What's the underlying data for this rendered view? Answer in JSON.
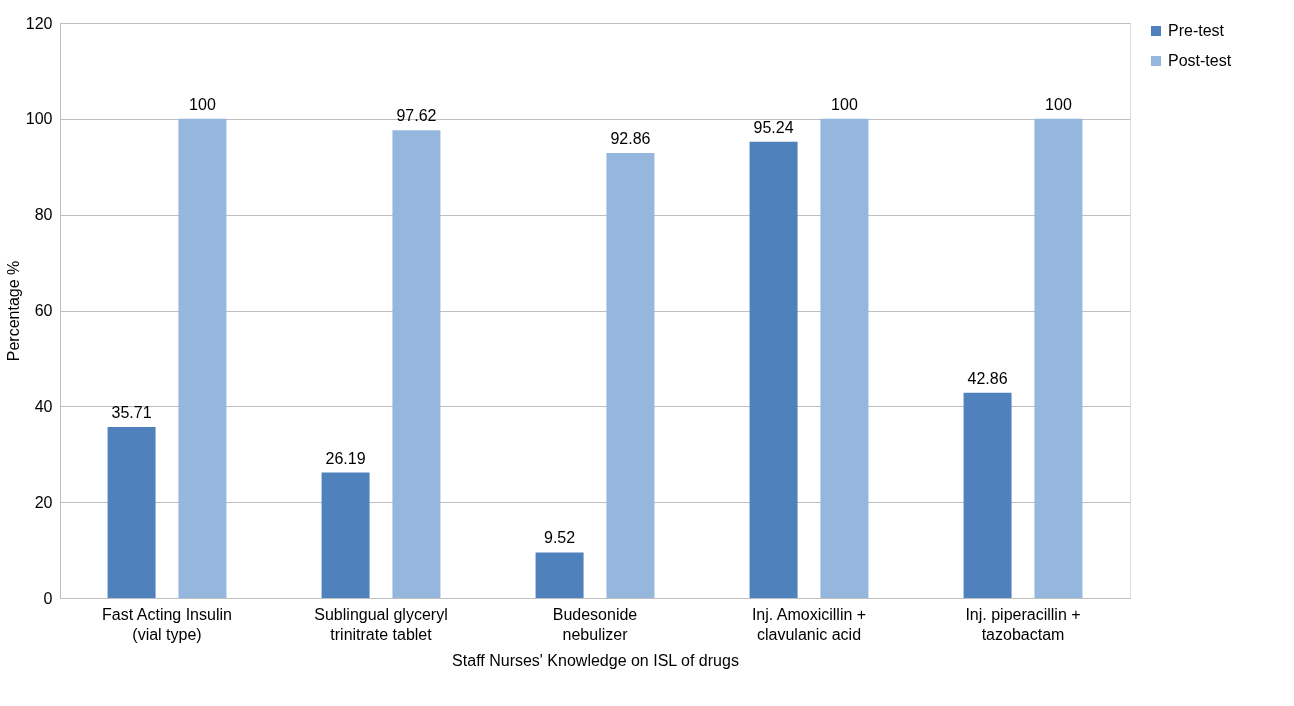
{
  "chart_data": {
    "type": "bar",
    "xlabel": "Staff Nurses' Knowledge on ISL of drugs",
    "ylabel": "Percentage %",
    "categories": [
      "Fast Acting Insulin\n(vial type)",
      "Sublingual glyceryl\ntrinitrate tablet",
      "Budesonide\nnebulizer",
      "Inj. Amoxicillin +\nclavulanic acid",
      "Inj. piperacillin +\ntazobactam"
    ],
    "series": [
      {
        "name": "Pre-test",
        "color": "#4f81bd",
        "values": [
          35.71,
          26.19,
          9.52,
          95.24,
          42.86
        ]
      },
      {
        "name": "Post-test",
        "color": "#95b7de",
        "values": [
          100,
          97.62,
          92.86,
          100,
          100
        ]
      }
    ],
    "ylim": [
      0,
      120
    ],
    "yticks": [
      0,
      20,
      40,
      60,
      80,
      100,
      120
    ],
    "grid": "y",
    "legend": "right",
    "data_labels": true
  }
}
